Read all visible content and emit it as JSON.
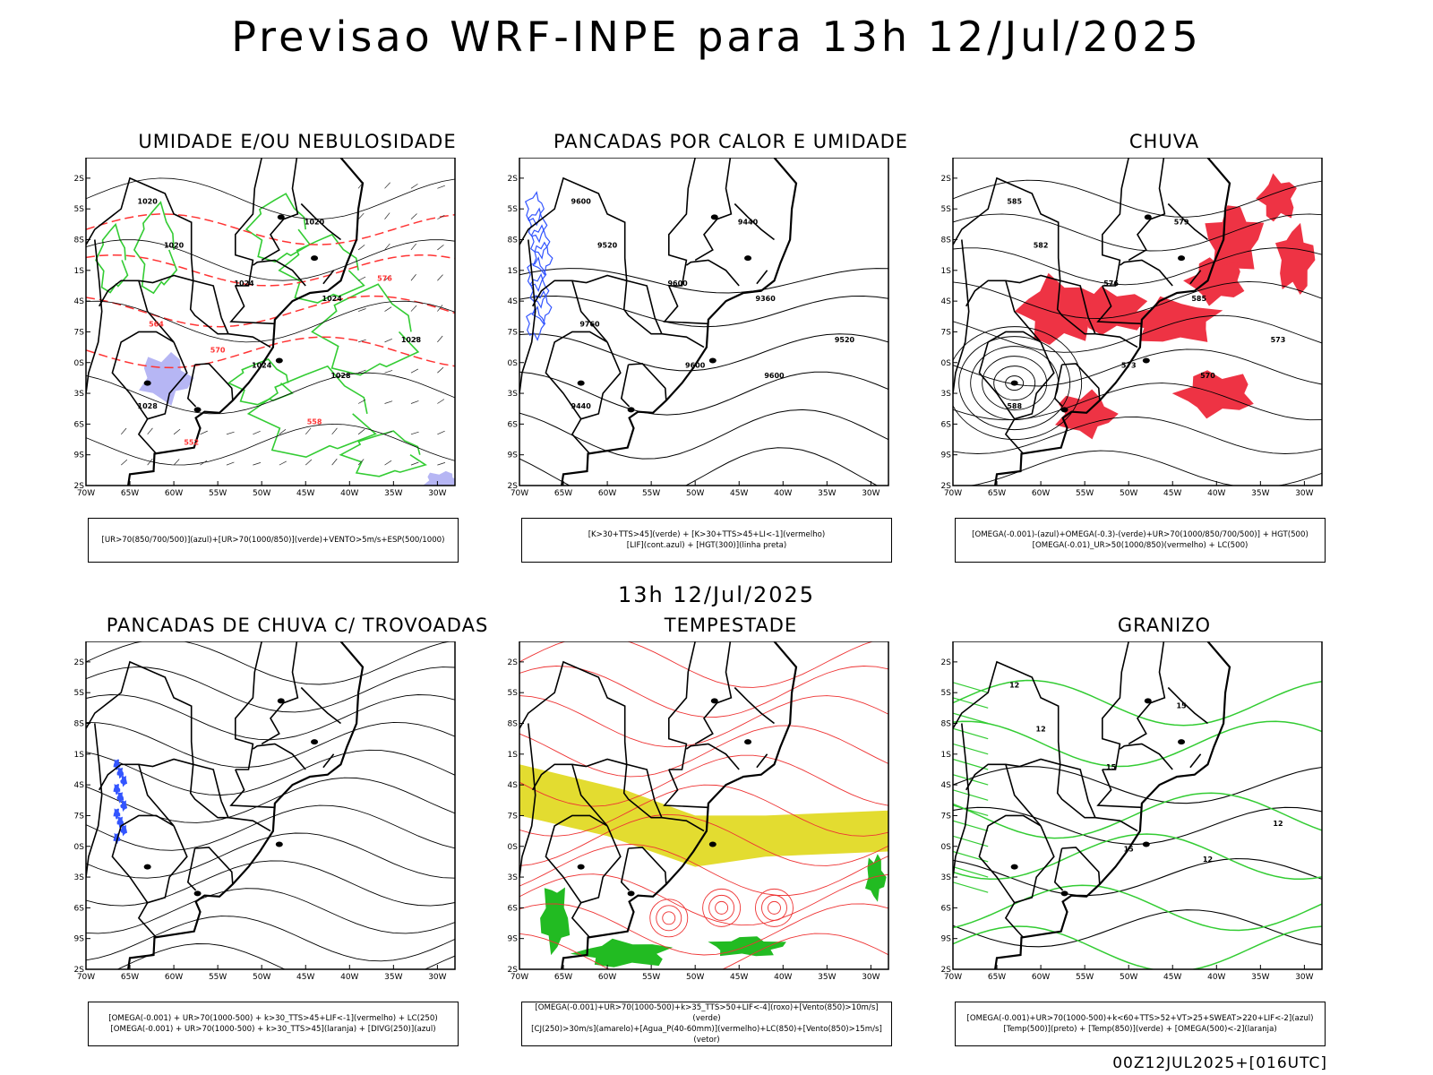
{
  "title": "Previsao WRF-INPE  para 13h 12/Jul/2025",
  "subtitle": "13h 12/Jul/2025",
  "footer": "00Z12JUL2025+[016UTC]",
  "axes": {
    "lat_labels": [
      "12S",
      "15S",
      "18S",
      "21S",
      "24S",
      "27S",
      "30S",
      "33S",
      "36S",
      "39S",
      "42S"
    ],
    "lon_labels": [
      "70W",
      "65W",
      "60W",
      "55W",
      "50W",
      "45W",
      "40W",
      "35W",
      "30W"
    ]
  },
  "colors": {
    "humidity_blue": "#a9a9f2",
    "humidity_green": "#33cc33",
    "thickness_red": "#ff3333",
    "lifted_blue": "#3355ff",
    "rain_red": "#ee3344",
    "storm_yellow": "#e3dc30",
    "storm_green": "#22bb22",
    "hail_green": "#33cc33"
  },
  "panels": [
    {
      "id": "umidade",
      "title": "UMIDADE E/OU NEBULOSIDADE",
      "legend": [
        "[UR>70(850/700/500)](azul)+[UR>70(1000/850)](verde)+VENTO>5m/s+ESP(500/1000)"
      ],
      "contour_labels": [
        "1020",
        "1020",
        "1020",
        "1024",
        "1024",
        "1028",
        "1028",
        "1028",
        "1024",
        "564",
        "570",
        "576",
        "558",
        "552"
      ]
    },
    {
      "id": "calor",
      "title": "PANCADAS POR CALOR E UMIDADE",
      "legend": [
        "[K>30+TTS>45](verde) + [K>30+TTS>45+LI<-1](vermelho)",
        "[LIF](cont.azul) + [HGT(300)](linha preta)"
      ],
      "contour_labels": [
        "9600",
        "9520",
        "9440",
        "9600",
        "9600",
        "9600",
        "9520",
        "9440",
        "9360",
        "9760"
      ]
    },
    {
      "id": "chuva",
      "title": "CHUVA",
      "legend": [
        "[OMEGA(-0.001)-(azul)+OMEGA(-0.3)-(verde)+UR>70(1000/850/700/500)] + HGT(500)",
        "[OMEGA(-0.01)_UR>50(1000/850)(vermelho) + LC(500)"
      ],
      "contour_labels": [
        "585",
        "582",
        "579",
        "576",
        "573",
        "570",
        "573",
        "588",
        "585"
      ]
    },
    {
      "id": "trovoadas",
      "title": "PANCADAS DE CHUVA C/ TROVOADAS",
      "legend": [
        "[OMEGA(-0.001) + UR>70(1000-500) + k>30_TTS>45+LIF<-1](vermelho) + LC(250)",
        "[OMEGA(-0.001) + UR>70(1000-500) + k>30_TTS>45](laranja) + [DIVG(250)](azul)"
      ],
      "contour_labels": []
    },
    {
      "id": "tempestade",
      "title": "TEMPESTADE",
      "legend": [
        "[OMEGA(-0.001)+UR>70(1000-500)+k>35_TTS>50+LIF<-4](roxo)+[Vento(850)>10m/s](verde)",
        "[CJ(250)>30m/s](amarelo)+[Agua_P(40-60mm)](vermelho)+LC(850)+[Vento(850)>15m/s](vetor)"
      ],
      "contour_labels": []
    },
    {
      "id": "granizo",
      "title": "GRANIZO",
      "legend": [
        "[OMEGA(-0.001)+UR>70(1000-500)+k<60+TTS>52+VT>25+SWEAT>220+LIF<-2](azul)",
        "[Temp(500)](preto) + [Temp(850)](verde) + [OMEGA(500)<-2](laranja)"
      ],
      "contour_labels": [
        "12",
        "12",
        "15",
        "15",
        "15",
        "12",
        "12"
      ]
    }
  ]
}
